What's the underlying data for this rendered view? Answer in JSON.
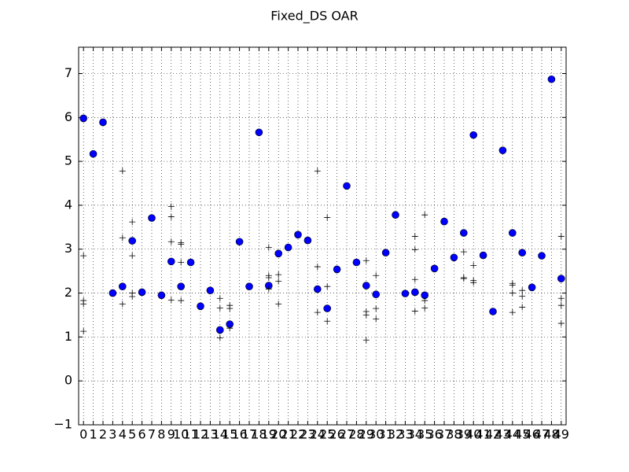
{
  "chart_data": {
    "type": "scatter",
    "title": "Fixed_DS OAR",
    "xlim": [
      -0.5,
      49.5
    ],
    "xticks": [
      0,
      1,
      2,
      3,
      4,
      5,
      6,
      7,
      8,
      9,
      10,
      11,
      12,
      13,
      14,
      15,
      16,
      17,
      18,
      19,
      20,
      21,
      22,
      23,
      24,
      25,
      26,
      27,
      28,
      29,
      30,
      31,
      32,
      33,
      34,
      35,
      36,
      37,
      38,
      39,
      40,
      41,
      42,
      43,
      44,
      45,
      46,
      47,
      48,
      49
    ],
    "ylim": [
      -1,
      7.6
    ],
    "yticks": [
      {
        "value": -1,
        "label": "−1"
      },
      0,
      1,
      2,
      3,
      4,
      5,
      6,
      7
    ],
    "grid": true,
    "series": [
      {
        "color": "#0000ff",
        "marker": "o",
        "x": [
          0,
          1,
          2,
          3,
          4,
          5,
          6,
          7,
          8,
          9,
          10,
          11,
          12,
          13,
          14,
          15,
          16,
          17,
          18,
          19,
          20,
          21,
          22,
          23,
          24,
          25,
          26,
          27,
          28,
          29,
          30,
          31,
          32,
          33,
          34,
          35,
          36,
          37,
          38,
          39,
          40,
          41,
          42,
          43,
          44,
          45,
          46,
          47,
          48,
          49
        ],
        "values": [
          5.98,
          5.17,
          5.89,
          2.0,
          2.15,
          3.19,
          2.02,
          3.71,
          1.95,
          2.72,
          2.15,
          2.7,
          1.7,
          2.06,
          1.16,
          1.29,
          3.17,
          2.15,
          5.66,
          2.17,
          2.9,
          3.04,
          3.33,
          3.2,
          2.09,
          1.65,
          2.54,
          4.44,
          2.7,
          2.17,
          1.97,
          2.92,
          3.78,
          1.99,
          2.02,
          1.95,
          2.56,
          3.63,
          2.81,
          3.37,
          5.6,
          2.86,
          1.58,
          5.25,
          3.37,
          2.92,
          2.13,
          2.85,
          6.87,
          2.33
        ]
      },
      {
        "color": "#000000",
        "marker": "+",
        "x": [
          0,
          0,
          0,
          0,
          4,
          4,
          4,
          5,
          5,
          5,
          5,
          9,
          9,
          9,
          9,
          10,
          10,
          10,
          10,
          14,
          14,
          14,
          15,
          15,
          15,
          19,
          19,
          19,
          19,
          20,
          20,
          20,
          24,
          24,
          24,
          25,
          25,
          25,
          29,
          29,
          29,
          29,
          30,
          30,
          30,
          34,
          34,
          34,
          34,
          35,
          35,
          35,
          39,
          39,
          39,
          40,
          40,
          40,
          44,
          44,
          44,
          44,
          45,
          45,
          45,
          49,
          49,
          49,
          49
        ],
        "values": [
          2.85,
          1.83,
          1.75,
          1.13,
          4.78,
          3.26,
          1.75,
          3.62,
          2.85,
          2.0,
          1.92,
          3.97,
          3.74,
          3.17,
          1.84,
          3.15,
          3.11,
          2.7,
          1.83,
          1.88,
          1.66,
          0.98,
          1.72,
          1.65,
          1.2,
          3.04,
          2.4,
          2.35,
          2.09,
          2.42,
          2.27,
          1.75,
          4.78,
          2.6,
          1.56,
          3.72,
          2.15,
          1.36,
          2.74,
          1.58,
          1.5,
          0.93,
          2.4,
          1.65,
          1.41,
          3.29,
          2.99,
          2.31,
          1.59,
          3.78,
          1.83,
          1.66,
          2.94,
          2.35,
          2.33,
          2.63,
          2.29,
          2.24,
          2.22,
          2.18,
          2.0,
          1.56,
          2.06,
          1.93,
          1.68,
          3.29,
          1.88,
          1.72,
          1.31
        ]
      }
    ]
  }
}
